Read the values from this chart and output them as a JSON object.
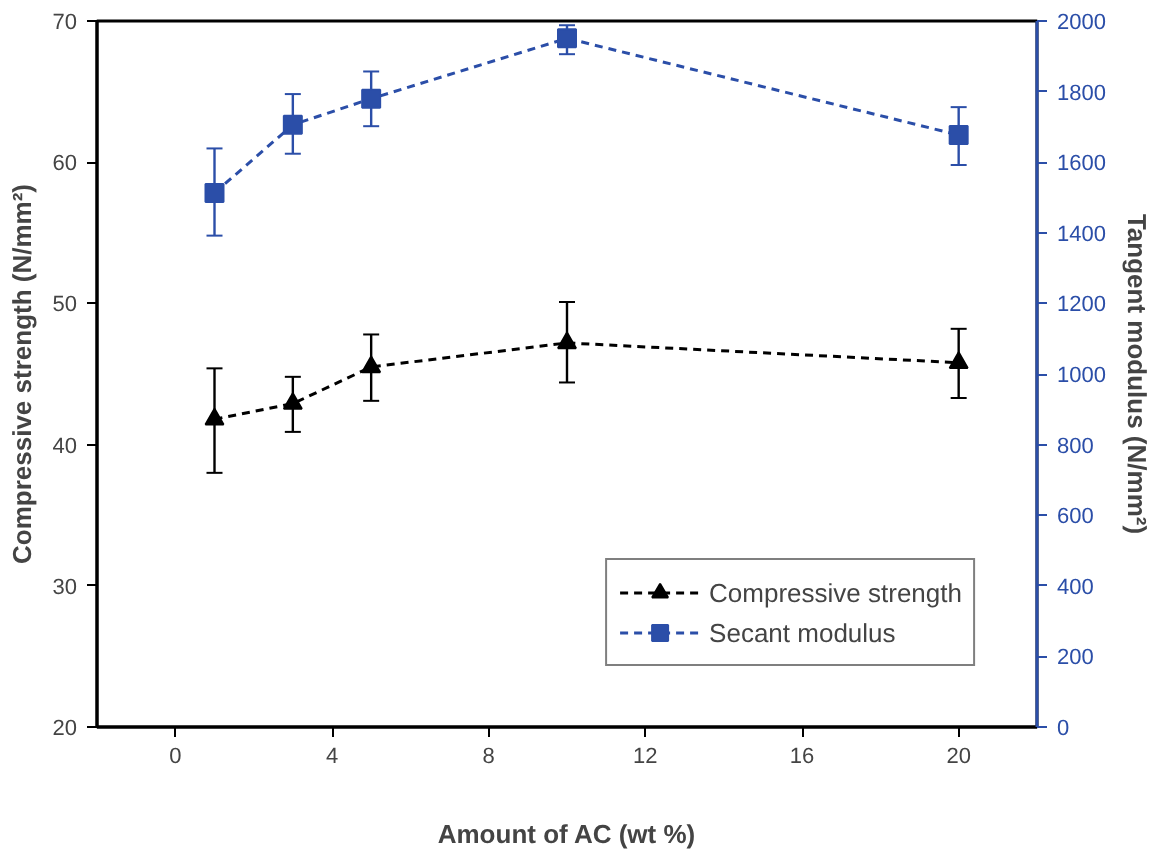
{
  "chart_data": {
    "type": "line",
    "xlabel": "Amount of AC (wt %)",
    "ylabel": "Compressive strength (N/mm²)",
    "y2label": "Tangent modulus (N/mm²)",
    "x": [
      1,
      3,
      5,
      10,
      20
    ],
    "series": [
      {
        "name": "Compressive strength",
        "color": "#000000",
        "marker": "triangle",
        "values": [
          41.8,
          42.9,
          45.5,
          47.2,
          45.8
        ],
        "errors": [
          [
            38.0,
            45.4
          ],
          [
            40.9,
            44.8
          ],
          [
            43.1,
            47.8
          ],
          [
            44.4,
            50.1
          ],
          [
            43.3,
            48.2
          ]
        ]
      },
      {
        "name": "Secant modulus",
        "color": "#2b4ea8",
        "marker": "square",
        "axis": "y2",
        "values": [
          1513,
          1706,
          1780,
          1951,
          1677
        ],
        "errors": [
          [
            1392,
            1639
          ],
          [
            1624,
            1793
          ],
          [
            1702,
            1857
          ],
          [
            1906,
            1988
          ],
          [
            1592,
            1756
          ]
        ]
      }
    ],
    "xlim": [
      -2,
      22
    ],
    "xticks": [
      0,
      4,
      8,
      12,
      16,
      20
    ],
    "ylim": [
      20,
      70
    ],
    "yticks": [
      20,
      30,
      40,
      50,
      60,
      70
    ],
    "y2lim": [
      0,
      2000
    ],
    "y2ticks": [
      0,
      200,
      400,
      600,
      800,
      1000,
      1200,
      1400,
      1600,
      1800,
      2000
    ],
    "line_style": "dashed",
    "grid": false,
    "legend": "bottom right"
  }
}
